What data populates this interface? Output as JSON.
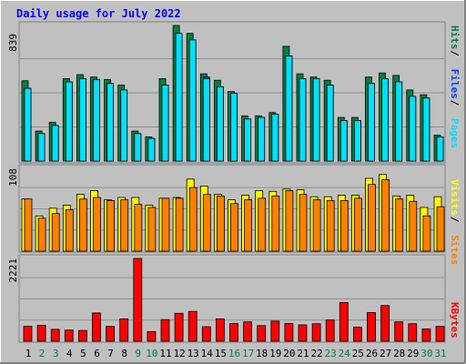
{
  "chart_data": [
    {
      "type": "bar",
      "title": "Daily usage for July 2022",
      "categories": [
        "1",
        "2",
        "3",
        "4",
        "5",
        "6",
        "7",
        "8",
        "9",
        "10",
        "11",
        "12",
        "13",
        "14",
        "15",
        "16",
        "17",
        "18",
        "19",
        "20",
        "21",
        "22",
        "23",
        "24",
        "25",
        "26",
        "27",
        "28",
        "29",
        "30",
        "31"
      ],
      "weekend_days": [
        "2",
        "3",
        "9",
        "10",
        "16",
        "17",
        "23",
        "24",
        "30",
        "31"
      ],
      "ylabel": "Hits / Files / Pages",
      "ymax_label": "839",
      "ylim": [
        0,
        839
      ],
      "series": [
        {
          "name": "Hits",
          "color": "#008040",
          "values": [
            497,
            186,
            240,
            510,
            535,
            520,
            505,
            470,
            186,
            150,
            510,
            839,
            790,
            540,
            500,
            430,
            280,
            280,
            300,
            710,
            540,
            520,
            500,
            270,
            270,
            520,
            545,
            530,
            440,
            410,
            160
          ]
        },
        {
          "name": "Files",
          "color": "#0040ff",
          "values": [
            450,
            170,
            220,
            490,
            510,
            505,
            480,
            440,
            170,
            140,
            470,
            510,
            500,
            520,
            460,
            420,
            260,
            270,
            290,
            650,
            510,
            510,
            470,
            250,
            250,
            480,
            510,
            490,
            400,
            390,
            150
          ]
        },
        {
          "name": "Pages",
          "color": "#00e0ff",
          "values": [
            450,
            170,
            220,
            490,
            510,
            505,
            480,
            440,
            170,
            140,
            470,
            790,
            750,
            510,
            460,
            420,
            260,
            270,
            290,
            650,
            510,
            510,
            470,
            250,
            250,
            480,
            510,
            490,
            400,
            390,
            150
          ]
        }
      ]
    },
    {
      "type": "bar",
      "ylabel": "Sites / Visits",
      "ymax_label": "108",
      "ylim": [
        0,
        108
      ],
      "series": [
        {
          "name": "Visits",
          "color": "#ffff00",
          "values": [
            68,
            46,
            56,
            60,
            74,
            79,
            67,
            70,
            70,
            60,
            69,
            70,
            94,
            85,
            74,
            67,
            73,
            79,
            78,
            81,
            80,
            71,
            71,
            73,
            73,
            95,
            100,
            72,
            73,
            57,
            71
          ]
        },
        {
          "name": "Sites",
          "color": "#ff8000",
          "values": [
            68,
            43,
            49,
            54,
            68,
            70,
            66,
            67,
            61,
            57,
            69,
            69,
            83,
            74,
            72,
            62,
            67,
            69,
            72,
            79,
            74,
            67,
            66,
            66,
            69,
            87,
            93,
            68,
            65,
            46,
            58
          ]
        }
      ]
    },
    {
      "type": "bar",
      "ylabel": "KBytes",
      "ymax_label": "2221",
      "ylim": [
        0,
        2221
      ],
      "series": [
        {
          "name": "KBytes",
          "color": "#ff0000",
          "values": [
            400,
            430,
            320,
            300,
            290,
            760,
            400,
            600,
            2221,
            260,
            580,
            750,
            800,
            390,
            600,
            480,
            520,
            420,
            540,
            480,
            440,
            470,
            570,
            1040,
            380,
            770,
            960,
            520,
            470,
            330,
            400
          ]
        }
      ]
    }
  ],
  "legend": {
    "top": [
      "Hits",
      "Files",
      "Pages"
    ],
    "middle": [
      "Visits",
      "Sites"
    ],
    "bottom": [
      "KBytes"
    ]
  },
  "colors": {
    "background": "#c0c0c0",
    "title": "#0000ff",
    "weekday_label": "#000000",
    "weekend_label": "#008040"
  }
}
